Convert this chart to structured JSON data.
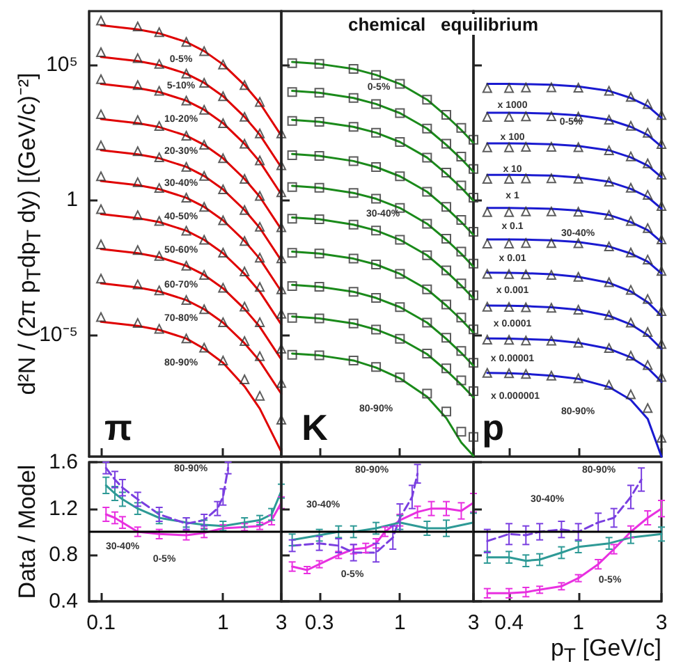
{
  "chart_data": [
    {
      "type": "scatter",
      "ylabel": "d²N / (2π p$_{T}$dp$_{T}$ dy)   [(GeV/c)⁻²]",
      "log": "xy",
      "x": [
        0.1,
        0.2,
        0.3,
        0.5,
        0.7,
        1,
        1.5,
        2,
        3
      ],
      "xlim": [
        0.08,
        3
      ],
      "xticks": [
        0.1,
        1,
        3
      ],
      "ylim": [
        3e-10,
        10000000.0
      ],
      "yticks": [
        {
          "value": 100000,
          "label": "10⁵"
        },
        1,
        {
          "value": 1e-05,
          "label": "10⁻⁵"
        }
      ],
      "tick_labels": "y",
      "series": [
        {
          "type": "scatter",
          "marker": "triangle",
          "color": "#333333",
          "values": [
            4500000.0,
            2700000.0,
            1650000.0,
            720000.0,
            330000.0,
            105000.0,
            18000.0,
            4300.0,
            290
          ]
        },
        {
          "type": "line",
          "color": "#e00000",
          "values": [
            3000000.0,
            2100000.0,
            1500000.0,
            720000.0,
            330000.0,
            105000.0,
            18000.0,
            3900.0,
            240
          ]
        },
        {
          "type": "scatter",
          "marker": "triangle",
          "color": "#333333",
          "values": [
            300000.0,
            180000.0,
            110000.0,
            48000.0,
            22000.0,
            7000.0,
            1200.0,
            290,
            19
          ]
        },
        {
          "type": "line",
          "color": "#e00000",
          "values": [
            200000.0,
            140000.0,
            100000.0,
            48000.0,
            22000.0,
            7000.0,
            1200.0,
            260,
            16
          ]
        },
        {
          "type": "scatter",
          "marker": "triangle",
          "color": "#333333",
          "values": [
            30000.0,
            18000.0,
            11000.0,
            4800.0,
            2200.0,
            700,
            120,
            29,
            1.9
          ]
        },
        {
          "type": "line",
          "color": "#e00000",
          "values": [
            20000.0,
            14000.0,
            10000.0,
            4800.0,
            2200.0,
            700,
            120,
            26,
            1.6
          ]
        },
        {
          "type": "scatter",
          "marker": "triangle",
          "color": "#333333",
          "values": [
            1500,
            910,
            550,
            240,
            110,
            35,
            6,
            1.4,
            0.096
          ]
        },
        {
          "type": "line",
          "color": "#e00000",
          "values": [
            1000,
            700,
            500,
            240,
            110,
            35,
            6,
            1.3,
            0.08
          ]
        },
        {
          "type": "scatter",
          "marker": "triangle",
          "color": "#333333",
          "values": [
            105,
            64,
            38,
            16.8,
            7.7,
            2.45,
            0.42,
            0.1,
            0.0067
          ]
        },
        {
          "type": "line",
          "color": "#e00000",
          "values": [
            70,
            49,
            35,
            16.8,
            7.7,
            2.45,
            0.42,
            0.091,
            0.0056
          ]
        },
        {
          "type": "scatter",
          "marker": "triangle",
          "color": "#333333",
          "values": [
            7.5,
            4.5,
            2.75,
            1.2,
            0.55,
            0.175,
            0.03,
            0.0072,
            0.00048
          ]
        },
        {
          "type": "line",
          "color": "#e00000",
          "values": [
            5,
            3.5,
            2.5,
            1.2,
            0.55,
            0.175,
            0.03,
            0.0065,
            0.0004
          ]
        },
        {
          "type": "scatter",
          "marker": "triangle",
          "color": "#333333",
          "values": [
            0.45,
            0.27,
            0.165,
            0.072,
            0.033,
            0.011,
            0.0022,
            0.00059,
            6e-05
          ]
        },
        {
          "type": "line",
          "color": "#e00000",
          "values": [
            0.3,
            0.21,
            0.15,
            0.072,
            0.033,
            0.0105,
            0.0018,
            0.00039,
            2.4e-05
          ]
        },
        {
          "type": "scatter",
          "marker": "triangle",
          "color": "#333333",
          "values": [
            0.0225,
            0.0137,
            0.0083,
            0.0036,
            0.00165,
            0.00055,
            0.00011,
            2.9e-05,
            3e-06
          ]
        },
        {
          "type": "line",
          "color": "#e00000",
          "values": [
            0.015,
            0.0105,
            0.0075,
            0.0036,
            0.00165,
            0.000525,
            9e-05,
            1.95e-05,
            1.2e-06
          ]
        },
        {
          "type": "scatter",
          "marker": "triangle",
          "color": "#333333",
          "values": [
            0.0012,
            0.00073,
            0.00044,
            0.000192,
            8.8e-05,
            2.9e-05,
            5.8e-06,
            1.6e-06,
            1.6e-07
          ]
        },
        {
          "type": "line",
          "color": "#e00000",
          "values": [
            0.0008,
            0.00056,
            0.0004,
            0.000192,
            8.8e-05,
            2.8e-05,
            4.8e-06,
            1.04e-06,
            6.4e-08
          ]
        },
        {
          "type": "scatter",
          "marker": "triangle",
          "color": "#333333",
          "values": [
            4.5e-05,
            2.7e-05,
            1.65e-05,
            7.2e-06,
            3.3e-06,
            1.1e-06,
            2.2e-07,
            5.4e-08,
            7e-09
          ]
        },
        {
          "type": "line",
          "color": "#e00000",
          "values": [
            3e-05,
            2.1e-05,
            1.5e-05,
            7.2e-06,
            3e-06,
            9e-07,
            1.2e-07,
            1.8e-08,
            4.5e-10
          ]
        }
      ],
      "annotations": [
        "π",
        "0-5%",
        "5-10%",
        "10-20%",
        "20-30%",
        "30-40%",
        "40-50%",
        "50-60%",
        "60-70%",
        "70-80%",
        "80-90%"
      ]
    },
    {
      "type": "scatter",
      "title": "chemical   equilibrium",
      "log": "xy",
      "x": [
        0.2,
        0.3,
        0.5,
        0.7,
        1,
        1.5,
        2,
        2.5,
        3
      ],
      "xlim": [
        0.17,
        3
      ],
      "xticks": [
        0.3,
        1,
        3
      ],
      "ylim": [
        3e-10,
        10000000.0
      ],
      "yticks": [
        {
          "value": 100000,
          "label": null
        },
        {
          "value": 1,
          "label": null
        },
        {
          "value": 1e-05,
          "label": null
        }
      ],
      "tick_labels": false,
      "series": [
        {
          "type": "scatter",
          "marker": "square",
          "color": "#333333",
          "values": [
            117000.0,
            110000.0,
            72000.0,
            43000.0,
            20000.0,
            5200.0,
            1430.0,
            470,
            170
          ]
        },
        {
          "type": "line",
          "color": "#1a8a1a",
          "values": [
            130000.0,
            110000.0,
            72000.0,
            43000.0,
            20000.0,
            5200.0,
            1300.0,
            390,
            130
          ]
        },
        {
          "type": "scatter",
          "marker": "square",
          "color": "#333333",
          "values": [
            9900,
            9400,
            6000,
            3600,
            1650,
            440,
            121,
            40,
            14
          ]
        },
        {
          "type": "line",
          "color": "#1a8a1a",
          "values": [
            11000,
            9400,
            6000,
            3600,
            1650,
            440,
            110,
            33,
            11
          ]
        },
        {
          "type": "scatter",
          "marker": "square",
          "color": "#333333",
          "values": [
            840,
            790,
            510,
            310,
            140,
            37,
            10.2,
            3.4,
            1.2
          ]
        },
        {
          "type": "line",
          "color": "#1a8a1a",
          "values": [
            930,
            790,
            510,
            310,
            140,
            37,
            9.3,
            2.8,
            0.93
          ]
        },
        {
          "type": "scatter",
          "marker": "square",
          "color": "#333333",
          "values": [
            45,
            42.5,
            27.5,
            16.5,
            7.5,
            2,
            0.55,
            0.18,
            0.065
          ]
        },
        {
          "type": "line",
          "color": "#1a8a1a",
          "values": [
            50,
            42.5,
            27.5,
            16.5,
            7.5,
            2,
            0.5,
            0.15,
            0.05
          ]
        },
        {
          "type": "scatter",
          "marker": "square",
          "color": "#333333",
          "values": [
            3,
            2.8,
            1.8,
            1.1,
            0.5,
            0.13,
            0.036,
            0.012,
            0.0043
          ]
        },
        {
          "type": "line",
          "color": "#1a8a1a",
          "values": [
            3.3,
            2.8,
            1.8,
            1.1,
            0.5,
            0.13,
            0.033,
            0.01,
            0.0033
          ]
        },
        {
          "type": "scatter",
          "marker": "square",
          "color": "#333333",
          "values": [
            0.2,
            0.19,
            0.12,
            0.073,
            0.033,
            0.0088,
            0.0024,
            0.00079,
            0.00029
          ]
        },
        {
          "type": "line",
          "color": "#1a8a1a",
          "values": [
            0.22,
            0.19,
            0.12,
            0.073,
            0.033,
            0.0088,
            0.0022,
            0.00066,
            0.00022
          ]
        },
        {
          "type": "scatter",
          "marker": "square",
          "color": "#333333",
          "values": [
            0.0108,
            0.0102,
            0.0066,
            0.004,
            0.0018,
            0.00048,
            0.000132,
            4.3e-05,
            1.56e-05
          ]
        },
        {
          "type": "line",
          "color": "#1a8a1a",
          "values": [
            0.012,
            0.0102,
            0.0066,
            0.004,
            0.0018,
            0.00048,
            0.00012,
            3.6e-05,
            1.2e-05
          ]
        },
        {
          "type": "scatter",
          "marker": "square",
          "color": "#333333",
          "values": [
            0.00063,
            0.0006,
            0.00039,
            0.00023,
            0.000105,
            2.8e-05,
            7.7e-06,
            2.5e-06,
            9.1e-07
          ]
        },
        {
          "type": "line",
          "color": "#1a8a1a",
          "values": [
            0.0007,
            0.0006,
            0.00039,
            0.00023,
            0.000105,
            2.8e-05,
            7e-06,
            2.1e-06,
            7e-07
          ]
        },
        {
          "type": "scatter",
          "marker": "square",
          "color": "#333333",
          "values": [
            4.2e-05,
            4e-05,
            2.6e-05,
            1.55e-05,
            7e-06,
            2e-06,
            5.6e-07,
            2e-07,
            8e-08
          ]
        },
        {
          "type": "line",
          "color": "#1a8a1a",
          "values": [
            4.7e-05,
            4e-05,
            2.6e-05,
            1.55e-05,
            7e-06,
            1.9e-06,
            4.7e-07,
            1.4e-07,
            4.7e-08
          ]
        },
        {
          "type": "scatter",
          "marker": "square",
          "color": "#333333",
          "values": [
            1.8e-06,
            1.7e-06,
            1.1e-06,
            6.3e-07,
            2.6e-07,
            6.5e-08,
            1.4e-08,
            2.5e-09,
            1.6e-09
          ]
        },
        {
          "type": "line",
          "color": "#1a8a1a",
          "values": [
            2e-06,
            1.7e-06,
            1.1e-06,
            6e-07,
            2.4e-07,
            5e-08,
            8e-09,
            1e-09,
            3.2e-10
          ]
        }
      ],
      "annotations": [
        "K",
        "0-5%",
        "30-40%",
        "80-90%"
      ]
    },
    {
      "type": "scatter",
      "log": "xy",
      "x": [
        0.3,
        0.4,
        0.5,
        0.7,
        1,
        1.5,
        2,
        2.5,
        3
      ],
      "xlim": [
        0.25,
        3
      ],
      "xticks": [
        0.4,
        1,
        3
      ],
      "ylim": [
        3e-10,
        10000000.0
      ],
      "yticks": [
        {
          "value": 100000,
          "label": null
        },
        {
          "value": 1,
          "label": null
        },
        {
          "value": 1e-05,
          "label": null
        }
      ],
      "tick_labels": false,
      "series": [
        {
          "type": "scatter",
          "marker": "triangle",
          "color": "#333333",
          "values": [
            14000,
            14000,
            14700,
            14900,
            14400,
            11000,
            6600,
            3600,
            1400
          ]
        },
        {
          "type": "line",
          "color": "#1a1ad0",
          "values": [
            20000,
            20000,
            19600,
            18600,
            16000,
            11000,
            6000,
            3000,
            1100
          ]
        },
        {
          "type": "scatter",
          "marker": "triangle",
          "color": "#333333",
          "values": [
            1190,
            1190,
            1250,
            1260,
            1220,
            940,
            560,
            310,
            118
          ]
        },
        {
          "type": "line",
          "color": "#1a1ad0",
          "values": [
            1700,
            1700,
            1670,
            1580,
            1360,
            940,
            510,
            255,
            94
          ]
        },
        {
          "type": "scatter",
          "marker": "triangle",
          "color": "#333333",
          "values": [
            88,
            88,
            92,
            93,
            90,
            69,
            41,
            22.5,
            8.6
          ]
        },
        {
          "type": "line",
          "color": "#1a1ad0",
          "values": [
            125,
            125,
            122,
            116,
            100,
            69,
            37.5,
            18.8,
            6.9
          ]
        },
        {
          "type": "scatter",
          "marker": "triangle",
          "color": "#333333",
          "values": [
            6,
            6,
            6.2,
            6.3,
            6.1,
            4.7,
            2.8,
            1.54,
            0.59
          ]
        },
        {
          "type": "line",
          "color": "#1a1ad0",
          "values": [
            8.5,
            8.5,
            8.3,
            7.9,
            6.8,
            4.7,
            2.55,
            1.28,
            0.47
          ]
        },
        {
          "type": "scatter",
          "marker": "triangle",
          "color": "#333333",
          "values": [
            0.35,
            0.35,
            0.37,
            0.37,
            0.36,
            0.275,
            0.165,
            0.09,
            0.034
          ]
        },
        {
          "type": "line",
          "color": "#1a1ad0",
          "values": [
            0.5,
            0.5,
            0.49,
            0.465,
            0.4,
            0.275,
            0.15,
            0.075,
            0.0275
          ]
        },
        {
          "type": "scatter",
          "marker": "triangle",
          "color": "#333333",
          "values": [
            0.024,
            0.024,
            0.025,
            0.025,
            0.0245,
            0.0187,
            0.0112,
            0.0061,
            0.0023
          ]
        },
        {
          "type": "line",
          "color": "#1a1ad0",
          "values": [
            0.034,
            0.034,
            0.0333,
            0.0316,
            0.0272,
            0.0187,
            0.0102,
            0.0051,
            0.00187
          ]
        },
        {
          "type": "scatter",
          "marker": "triangle",
          "color": "#333333",
          "values": [
            0.0018,
            0.00176,
            0.00171,
            0.00165,
            0.0014,
            0.00088,
            0.00046,
            0.00021,
            7.5e-05
          ]
        },
        {
          "type": "line",
          "color": "#1a1ad0",
          "values": [
            0.002,
            0.00196,
            0.0019,
            0.00174,
            0.0014,
            0.00084,
            0.0004,
            0.00016,
            5e-05
          ]
        },
        {
          "type": "scatter",
          "marker": "triangle",
          "color": "#333333",
          "values": [
            0.000108,
            0.000106,
            0.000103,
            9.9e-05,
            8.4e-05,
            5.3e-05,
            2.8e-05,
            1.25e-05,
            4.5e-06
          ]
        },
        {
          "type": "line",
          "color": "#1a1ad0",
          "values": [
            0.00012,
            0.000118,
            0.000114,
            0.000104,
            8.4e-05,
            5e-05,
            2.4e-05,
            9.6e-06,
            3e-06
          ]
        },
        {
          "type": "scatter",
          "marker": "triangle",
          "color": "#333333",
          "values": [
            6.5e-06,
            6.4e-06,
            6.1e-06,
            6e-06,
            5e-06,
            3.2e-06,
            1.66e-06,
            7.5e-07,
            2.7e-07
          ]
        },
        {
          "type": "line",
          "color": "#1a1ad0",
          "values": [
            7.2e-06,
            7.1e-06,
            6.8e-06,
            6.3e-06,
            5e-06,
            3e-06,
            1.44e-06,
            5.8e-07,
            1.8e-07
          ]
        },
        {
          "type": "scatter",
          "marker": "triangle",
          "color": "#333333",
          "values": [
            3.8e-07,
            3.7e-07,
            3.5e-07,
            3e-07,
            2.4e-07,
            1.37e-07,
            6.1e-08,
            1.9e-08,
            1.5e-09
          ]
        },
        {
          "type": "line",
          "color": "#1a1ad0",
          "values": [
            3.8e-07,
            3.7e-07,
            3.5e-07,
            3e-07,
            2.3e-07,
            1.14e-07,
            3.8e-08,
            7.6e-09,
            3e-10
          ]
        }
      ],
      "annotations": [
        "p",
        "x 1000",
        "x 100",
        "x 10",
        "x 1",
        "x 0.1",
        "x 0.01",
        "x 0.001",
        "x 0.0001",
        "x 0.00001",
        "x 0.000001",
        "0-5%",
        "30-40%",
        "80-90%"
      ]
    },
    {
      "type": "line",
      "ylabel": "Data / Model",
      "log": "x",
      "xlim": [
        0.08,
        3
      ],
      "xticks": [
        0.1,
        1,
        3
      ],
      "ylim": [
        0.4,
        1.6
      ],
      "yticks": [
        0.4,
        0.8,
        1.2,
        1.6
      ],
      "ref_lines": [
        {
          "axis": "y",
          "value": 1,
          "color": "#000000"
        }
      ],
      "series": [
        {
          "color": "#e830e0",
          "x": [
            0.11,
            0.13,
            0.15,
            0.2,
            0.3,
            0.5,
            0.7,
            1,
            1.5,
            2,
            2.5,
            3
          ],
          "values": [
            1.15,
            1.12,
            1.08,
            1.0,
            0.98,
            0.97,
            0.99,
            1.03,
            1.04,
            1.05,
            1.1,
            1.25
          ],
          "errors": [
            0.06,
            0.05,
            0.05,
            0.04,
            0.04,
            0.04,
            0.04,
            0.03,
            0.03,
            0.03,
            0.04,
            0.05
          ]
        },
        {
          "color": "#2e9a96",
          "x": [
            0.11,
            0.13,
            0.15,
            0.2,
            0.3,
            0.5,
            0.7,
            1,
            1.5,
            2,
            2.5,
            3
          ],
          "values": [
            1.4,
            1.33,
            1.28,
            1.2,
            1.12,
            1.08,
            1.06,
            1.05,
            1.08,
            1.1,
            1.15,
            1.35
          ],
          "errors": [
            0.07,
            0.06,
            0.06,
            0.05,
            0.05,
            0.04,
            0.04,
            0.04,
            0.04,
            0.04,
            0.05,
            0.06
          ]
        },
        {
          "color": "#7a3fe0",
          "line_style": "dashed",
          "x": [
            0.11,
            0.13,
            0.15,
            0.2,
            0.3,
            0.5,
            0.7,
            0.9,
            1,
            1.1
          ],
          "values": [
            1.55,
            1.45,
            1.38,
            1.28,
            1.15,
            1.07,
            1.1,
            1.2,
            1.3,
            1.55
          ],
          "errors": [
            0.05,
            0.07,
            0.07,
            0.06,
            0.06,
            0.05,
            0.05,
            0.06,
            0.07,
            0.05
          ]
        }
      ],
      "annotations": [
        "80-90%",
        "30-40%",
        "0-5%"
      ]
    },
    {
      "type": "line",
      "log": "x",
      "xlim": [
        0.17,
        3
      ],
      "xticks": [
        0.3,
        1,
        3
      ],
      "ylim": [
        0.4,
        1.6
      ],
      "yticks": [
        0.4,
        0.8,
        1.2,
        1.6
      ],
      "tick_labels": "x",
      "ref_lines": [
        {
          "axis": "y",
          "value": 1,
          "color": "#000000"
        }
      ],
      "series": [
        {
          "color": "#e830e0",
          "x": [
            0.2,
            0.25,
            0.3,
            0.4,
            0.5,
            0.6,
            0.7,
            0.8,
            1,
            1.3,
            1.6,
            2,
            2.5,
            3
          ],
          "values": [
            0.7,
            0.67,
            0.72,
            0.8,
            0.85,
            0.86,
            0.9,
            1.0,
            1.1,
            1.17,
            1.2,
            1.2,
            1.18,
            1.25
          ],
          "errors": [
            0.04,
            0.03,
            0.03,
            0.03,
            0.04,
            0.04,
            0.04,
            0.04,
            0.05,
            0.05,
            0.06,
            0.06,
            0.07,
            0.08
          ]
        },
        {
          "color": "#2e9a96",
          "x": [
            0.2,
            0.3,
            0.4,
            0.5,
            0.7,
            1,
            1.5,
            2,
            3
          ],
          "values": [
            0.93,
            0.97,
            1.0,
            1.0,
            1.03,
            1.08,
            1.03,
            1.03,
            1.08
          ],
          "errors": [
            0.05,
            0.05,
            0.05,
            0.05,
            0.05,
            0.06,
            0.06,
            0.07,
            0.08
          ]
        },
        {
          "color": "#7a3fe0",
          "line_style": "dashed",
          "x": [
            0.2,
            0.3,
            0.4,
            0.5,
            0.7,
            0.9,
            1,
            1.2,
            1.3
          ],
          "values": [
            0.88,
            0.9,
            0.88,
            0.82,
            0.82,
            0.95,
            1.12,
            1.3,
            1.5
          ],
          "errors": [
            0.05,
            0.06,
            0.06,
            0.07,
            0.08,
            0.1,
            0.12,
            0.1,
            0.08
          ]
        }
      ],
      "annotations": [
        "80-90%",
        "30-40%",
        "0-5%"
      ]
    },
    {
      "type": "line",
      "xlabel": "p$_{T}$ [GeV/c]",
      "log": "x",
      "xlim": [
        0.25,
        3
      ],
      "xticks": [
        0.4,
        1,
        3
      ],
      "ylim": [
        0.4,
        1.6
      ],
      "yticks": [
        0.4,
        0.8,
        1.2,
        1.6
      ],
      "tick_labels": "x",
      "ref_lines": [
        {
          "axis": "y",
          "value": 1,
          "color": "#000000"
        }
      ],
      "series": [
        {
          "color": "#e830e0",
          "x": [
            0.3,
            0.4,
            0.5,
            0.6,
            0.8,
            1,
            1.3,
            1.6,
            2,
            2.5,
            3
          ],
          "values": [
            0.47,
            0.47,
            0.48,
            0.5,
            0.53,
            0.6,
            0.72,
            0.85,
            1.0,
            1.12,
            1.2
          ],
          "errors": [
            0.04,
            0.04,
            0.04,
            0.03,
            0.03,
            0.03,
            0.04,
            0.04,
            0.05,
            0.06,
            0.07
          ]
        },
        {
          "color": "#2e9a96",
          "x": [
            0.3,
            0.4,
            0.5,
            0.6,
            0.8,
            1,
            1.5,
            2,
            3
          ],
          "values": [
            0.78,
            0.78,
            0.75,
            0.76,
            0.82,
            0.87,
            0.9,
            0.95,
            0.98
          ],
          "errors": [
            0.05,
            0.05,
            0.05,
            0.05,
            0.05,
            0.05,
            0.05,
            0.05,
            0.06
          ]
        },
        {
          "color": "#7a3fe0",
          "line_style": "dashed",
          "x": [
            0.3,
            0.4,
            0.5,
            0.6,
            0.8,
            1,
            1.3,
            1.6,
            2,
            2.3
          ],
          "values": [
            0.92,
            0.98,
            0.97,
            1.0,
            1.02,
            1.0,
            1.08,
            1.12,
            1.3,
            1.45
          ],
          "errors": [
            0.1,
            0.09,
            0.08,
            0.07,
            0.07,
            0.07,
            0.08,
            0.08,
            0.1,
            0.1
          ]
        }
      ],
      "annotations": [
        "80-90%",
        "30-40%",
        "0-5%"
      ]
    }
  ]
}
